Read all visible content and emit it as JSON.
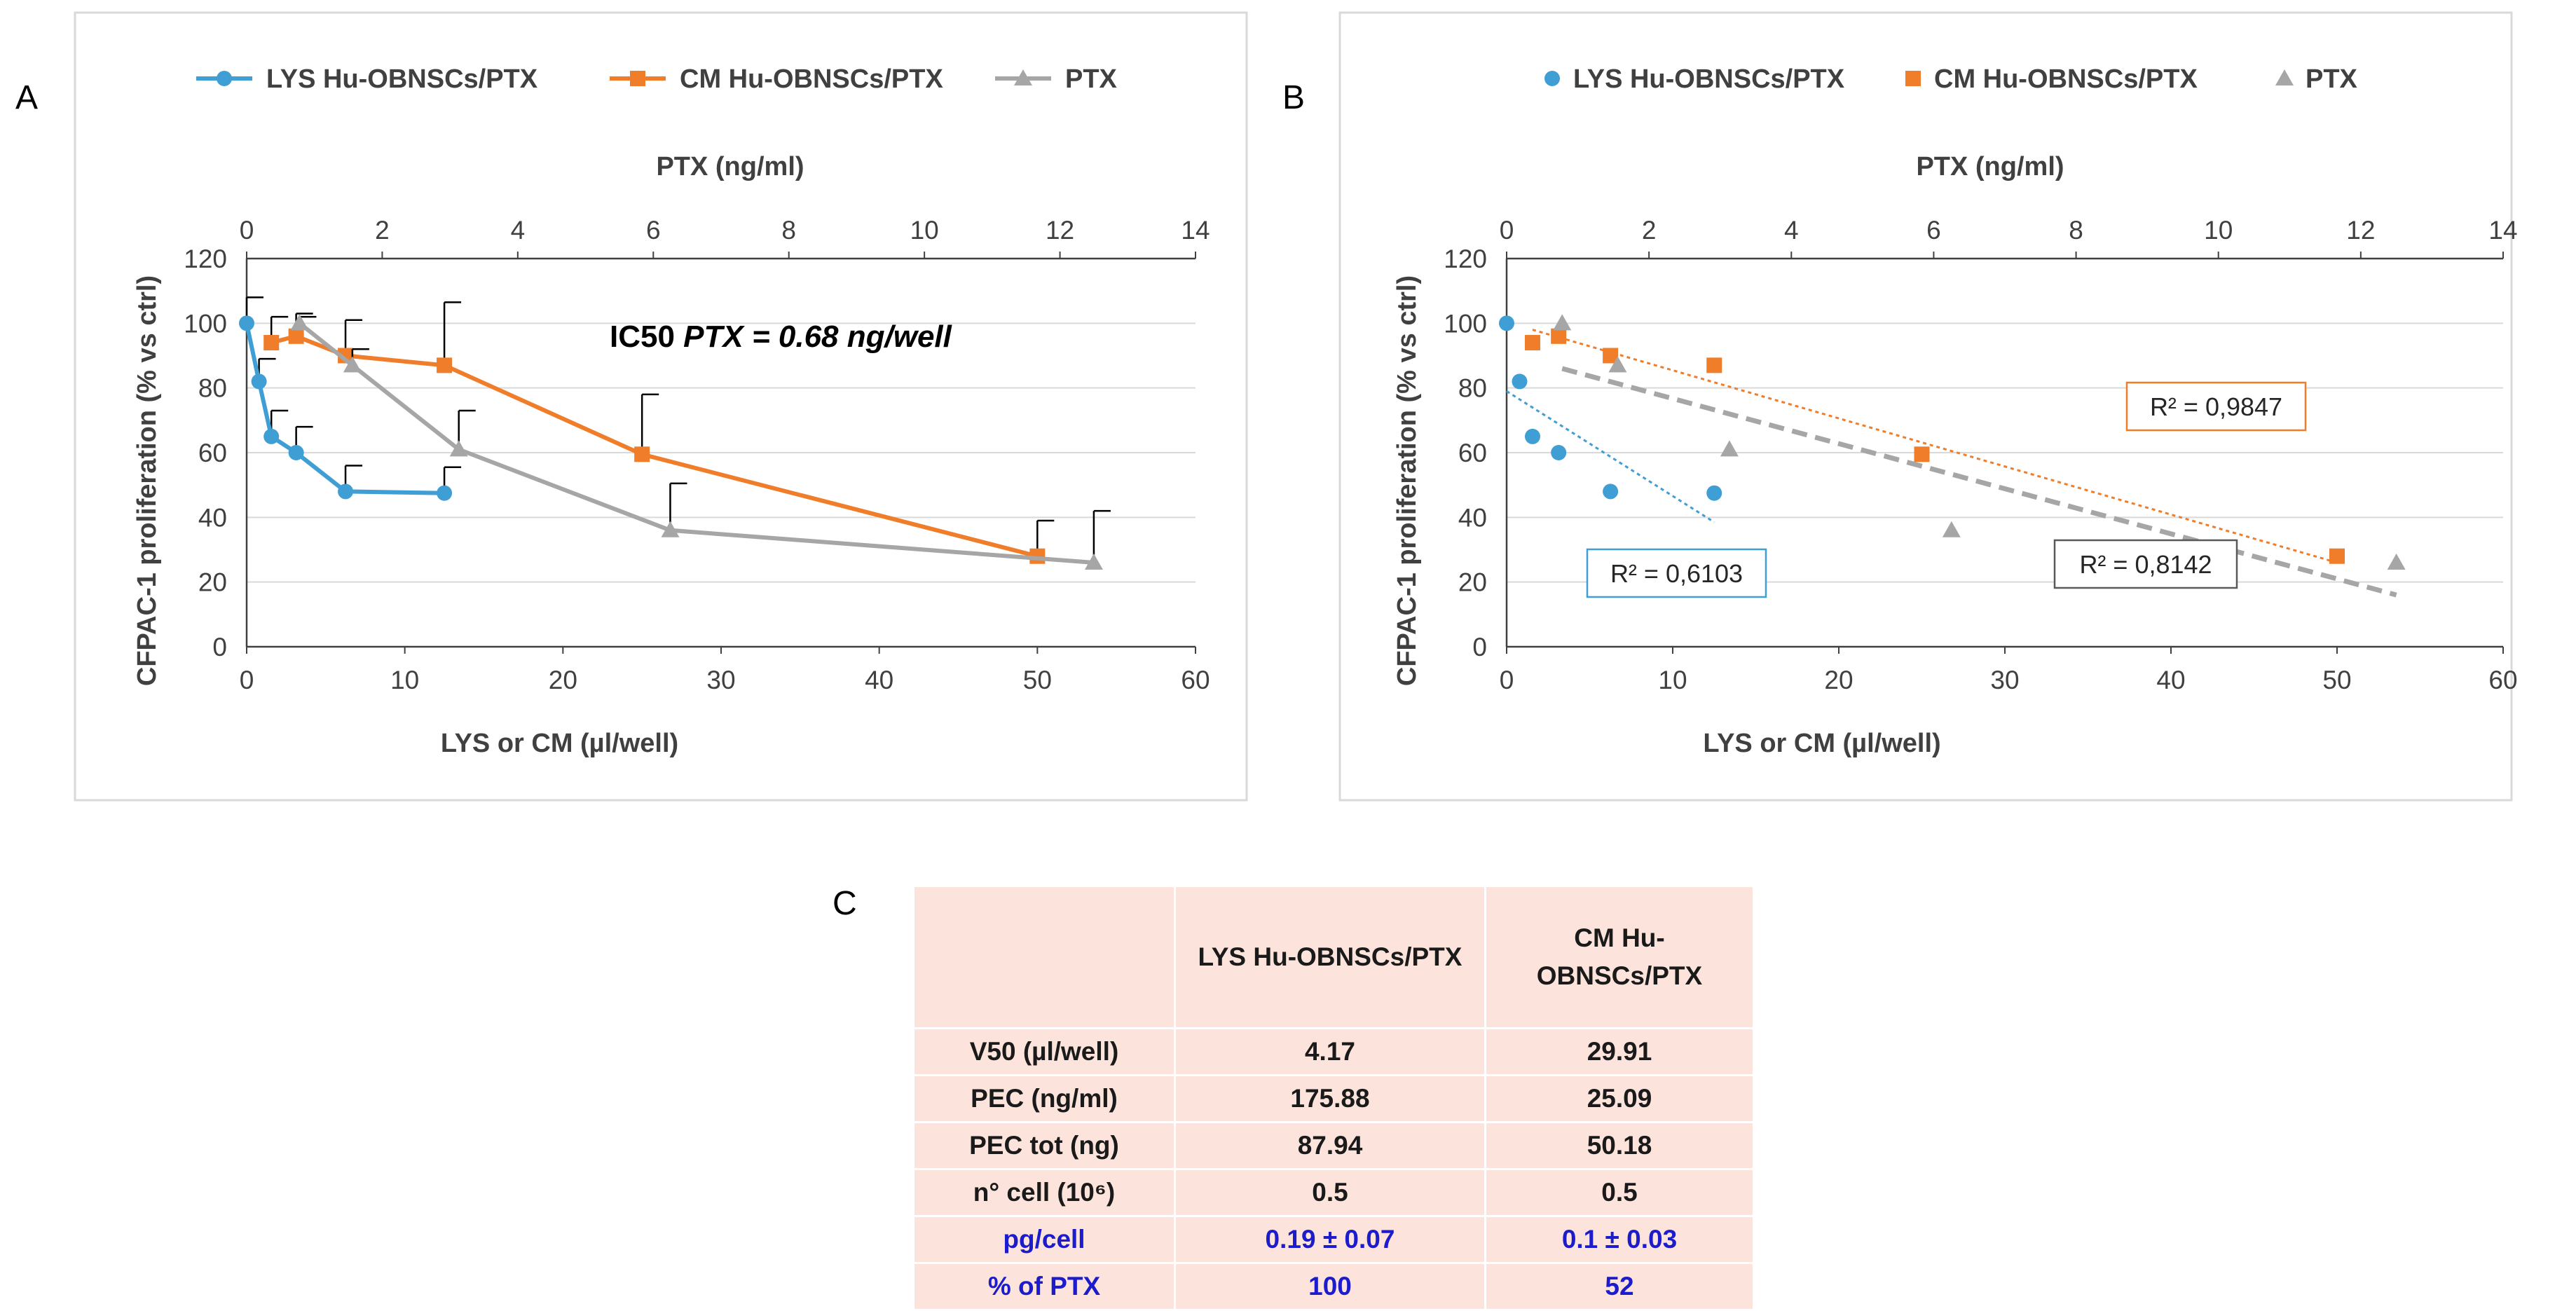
{
  "panel_labels": {
    "a": "A",
    "b": "B",
    "c": "C"
  },
  "colors": {
    "lys": "#3f9fd4",
    "cm": "#f07d2a",
    "ptx": "#a6a6a6",
    "grid": "#d9d9d9",
    "axis": "#404040",
    "blue_text": "#1c1ccc",
    "table_bg": "#fce4dc"
  },
  "annotation_ic50": "IC50 PTX = 0.68 ng/well",
  "chart_data": [
    {
      "id": "A",
      "type": "line",
      "xlabel": "LYS or CM (µl/well)",
      "x2label": "PTX (ng/ml)",
      "ylabel": "CFPAC-1 proliferation (% vs ctrl)",
      "xlim": [
        0,
        60
      ],
      "x2lim": [
        0,
        14
      ],
      "ylim": [
        0,
        120
      ],
      "xticks": [
        0,
        10,
        20,
        30,
        40,
        50,
        60
      ],
      "x2ticks": [
        0,
        2,
        4,
        6,
        8,
        10,
        12,
        14
      ],
      "yticks": [
        0,
        20,
        40,
        60,
        80,
        100,
        120
      ],
      "grid": true,
      "legend": "top",
      "series": [
        {
          "name": "LYS Hu-OBNSCs/PTX",
          "axis": "bottom",
          "marker": "circle",
          "color": "#3f9fd4",
          "x": [
            0,
            0.78,
            1.56,
            3.13,
            6.25,
            12.5
          ],
          "y": [
            100,
            82,
            65,
            60,
            48,
            47.5
          ],
          "err": [
            8,
            7,
            8,
            8,
            8,
            8
          ]
        },
        {
          "name": "CM Hu-OBNSCs/PTX",
          "axis": "bottom",
          "marker": "square",
          "color": "#f07d2a",
          "x": [
            1.56,
            3.13,
            6.25,
            12.5,
            25,
            50
          ],
          "y": [
            94,
            96,
            90,
            87,
            59.5,
            28
          ],
          "err": [
            8,
            7,
            11,
            19.5,
            18.5,
            11
          ]
        },
        {
          "name": "PTX",
          "axis": "top",
          "marker": "triangle",
          "color": "#a6a6a6",
          "x": [
            0.78,
            1.56,
            3.13,
            6.25,
            12.5
          ],
          "y": [
            100,
            87,
            61,
            36,
            26
          ],
          "err": [
            2,
            5,
            12,
            14.5,
            16
          ]
        }
      ]
    },
    {
      "id": "B",
      "type": "scatter",
      "xlabel": "LYS or CM (µl/well)",
      "x2label": "PTX (ng/ml)",
      "ylabel": "CFPAC-1 proliferation (% vs ctrl)",
      "xlim": [
        0,
        60
      ],
      "x2lim": [
        0,
        14
      ],
      "ylim": [
        0,
        120
      ],
      "xticks": [
        0,
        10,
        20,
        30,
        40,
        50,
        60
      ],
      "x2ticks": [
        0,
        2,
        4,
        6,
        8,
        10,
        12,
        14
      ],
      "yticks": [
        0,
        20,
        40,
        60,
        80,
        100,
        120
      ],
      "grid": true,
      "legend": "top",
      "series": [
        {
          "name": "LYS Hu-OBNSCs/PTX",
          "axis": "bottom",
          "marker": "circle",
          "color": "#3f9fd4",
          "x": [
            0,
            0.78,
            1.56,
            3.13,
            6.25,
            12.5
          ],
          "y": [
            100,
            82,
            65,
            60,
            48,
            47.5
          ],
          "trend": {
            "from": [
              0,
              79
            ],
            "to": [
              12.5,
              38.5
            ],
            "r2": "R² = 0,6103",
            "style": "dotted"
          }
        },
        {
          "name": "CM Hu-OBNSCs/PTX",
          "axis": "bottom",
          "marker": "square",
          "color": "#f07d2a",
          "x": [
            1.56,
            3.13,
            6.25,
            12.5,
            25,
            50
          ],
          "y": [
            94,
            96,
            90,
            87,
            59.5,
            28
          ],
          "trend": {
            "from": [
              1.56,
              98
            ],
            "to": [
              50,
              26
            ],
            "r2": "R² = 0,9847",
            "style": "dotted"
          }
        },
        {
          "name": "PTX",
          "axis": "top",
          "marker": "triangle",
          "color": "#a6a6a6",
          "x": [
            0.78,
            1.56,
            3.13,
            6.25,
            12.5
          ],
          "y": [
            100,
            87,
            61,
            36,
            26
          ],
          "trend": {
            "from": [
              0.78,
              86
            ],
            "to": [
              12.5,
              16
            ],
            "r2": "R² = 0,8142",
            "style": "dashed"
          }
        }
      ]
    }
  ],
  "table": {
    "headers": [
      "",
      "LYS Hu-OBNSCs/PTX",
      "CM Hu-OBNSCs/PTX"
    ],
    "rows": [
      {
        "label": "V50 (µl/well)",
        "lys": "4.17",
        "cm": "29.91"
      },
      {
        "label": "PEC (ng/ml)",
        "lys": "175.88",
        "cm": "25.09"
      },
      {
        "label": "PEC tot (ng)",
        "lys": "87.94",
        "cm": "50.18"
      },
      {
        "label": "n° cell (10⁶)",
        "lys": "0.5",
        "cm": "0.5"
      },
      {
        "label": "pg/cell",
        "lys": "0.19 ± 0.07",
        "cm": "0.1 ± 0.03"
      },
      {
        "label": "% of PTX",
        "lys": "100",
        "cm": "52"
      }
    ]
  }
}
